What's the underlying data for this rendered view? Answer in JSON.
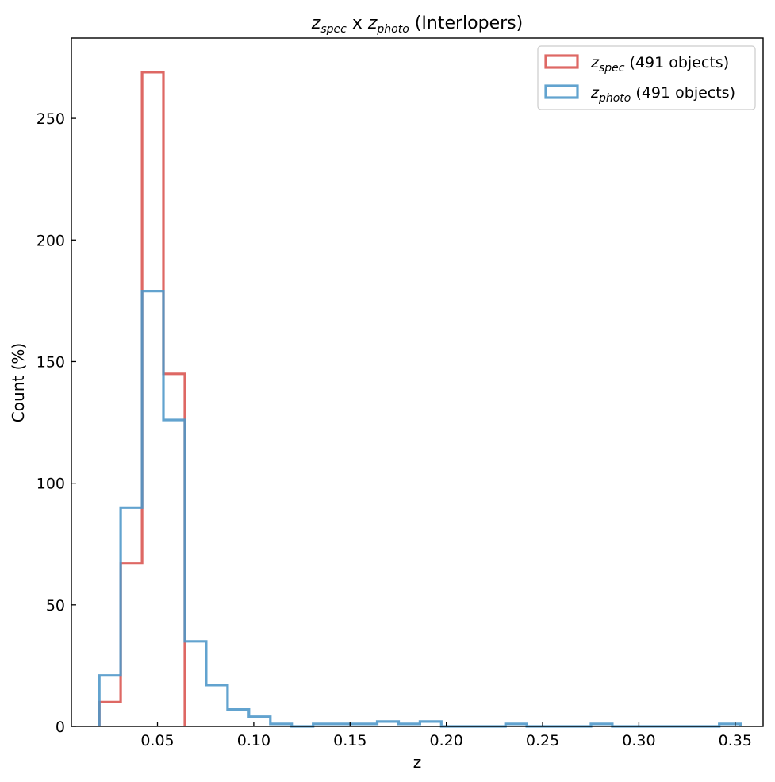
{
  "chart_data": {
    "type": "histogram",
    "title": {
      "parts": [
        {
          "t": "z",
          "style": "italic"
        },
        {
          "t": "spec",
          "style": "sub"
        },
        {
          "t": " x ",
          "style": "normal"
        },
        {
          "t": "z",
          "style": "italic"
        },
        {
          "t": "photo",
          "style": "sub"
        },
        {
          "t": " (Interlopers)",
          "style": "normal"
        }
      ]
    },
    "xlabel": "z",
    "ylabel": "Count (%)",
    "xlim": [
      0.0053,
      0.3645
    ],
    "ylim": [
      0,
      283
    ],
    "xticks": [
      0.05,
      0.1,
      0.15,
      0.2,
      0.25,
      0.3,
      0.35
    ],
    "xtick_labels": [
      "0.05",
      "0.10",
      "0.15",
      "0.20",
      "0.25",
      "0.30",
      "0.35"
    ],
    "yticks": [
      0,
      50,
      100,
      150,
      200,
      250
    ],
    "ytick_labels": [
      "0",
      "50",
      "100",
      "150",
      "200",
      "250"
    ],
    "legend_position": "top-right",
    "series": [
      {
        "name_parts": [
          {
            "t": "z",
            "style": "italic"
          },
          {
            "t": "spec",
            "style": "sub"
          },
          {
            "t": " (491 objects)",
            "style": "normal"
          }
        ],
        "color": "#d9534f",
        "bin_edges": [
          0.0198,
          0.0309,
          0.042,
          0.0531,
          0.0642
        ],
        "counts": [
          10,
          67,
          269,
          145
        ]
      },
      {
        "name_parts": [
          {
            "t": "z",
            "style": "italic"
          },
          {
            "t": "photo",
            "style": "sub"
          },
          {
            "t": " (491 objects)",
            "style": "normal"
          }
        ],
        "color": "#4c96c8",
        "bin_edges": [
          0.0198,
          0.0309,
          0.042,
          0.0531,
          0.0642,
          0.0753,
          0.0864,
          0.0975,
          0.1086,
          0.1197,
          0.1308,
          0.1419,
          0.153,
          0.1641,
          0.1752,
          0.1863,
          0.1974,
          0.2085,
          0.2196,
          0.2307,
          0.2418,
          0.2529,
          0.264,
          0.2751,
          0.2862,
          0.2973,
          0.3084,
          0.3195,
          0.3306,
          0.3417,
          0.3528
        ],
        "counts": [
          21,
          90,
          179,
          126,
          35,
          17,
          7,
          4,
          1,
          0,
          1,
          1,
          1,
          2,
          1,
          2,
          0,
          0,
          0,
          1,
          0,
          0,
          0,
          1,
          0,
          0,
          0,
          0,
          0,
          1
        ]
      }
    ]
  }
}
